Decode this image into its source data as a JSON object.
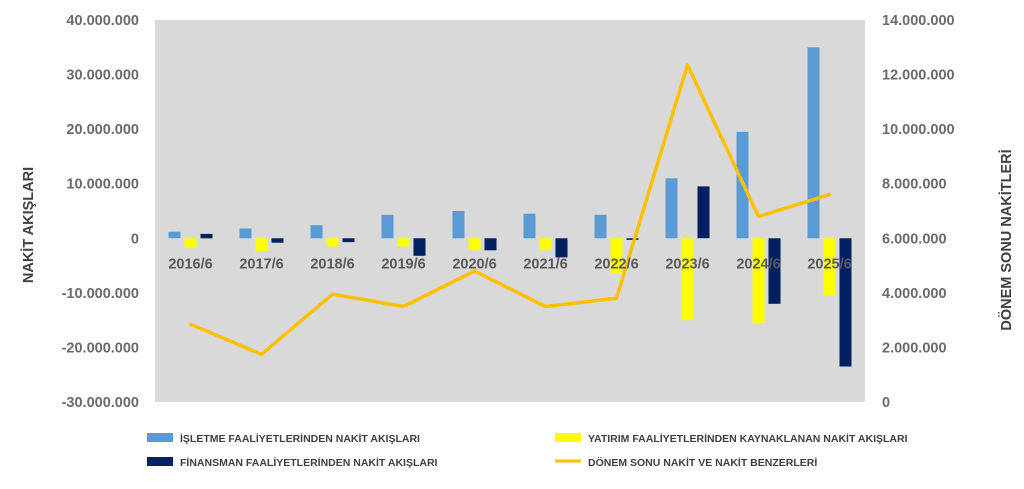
{
  "colors": {
    "plot_bg": "#d9d9d9",
    "operating": "#5b9bd5",
    "investing": "#ffff00",
    "financing": "#002060",
    "period_end": "#ffc000",
    "axis_text": "#6b6b6b"
  },
  "chart_data": {
    "type": "bar",
    "title": "",
    "xlabel": "",
    "ylabel": "NAKİT AKIŞLARI",
    "y2label": "DÖNEM SONU NAKİTLERİ",
    "ylim": [
      -30000000,
      40000000
    ],
    "y2lim": [
      0,
      14000000
    ],
    "grid": false,
    "legend_position": "bottom",
    "categories": [
      "2016/6",
      "2017/6",
      "2018/6",
      "2019/6",
      "2020/6",
      "2021/6",
      "2022/6",
      "2023/6",
      "2024/6",
      "2025/6"
    ],
    "y_ticks": [
      "40.000.000",
      "30.000.000",
      "20.000.000",
      "10.000.000",
      "0",
      "-10.000.000",
      "-20.000.000",
      "-30.000.000"
    ],
    "y2_ticks": [
      "14.000.000",
      "12.000.000",
      "10.000.000",
      "8.000.000",
      "6.000.000",
      "4.000.000",
      "2.000.000",
      "0"
    ],
    "series": [
      {
        "name": "İŞLETME FAALİYETLERİNDEN NAKİT AKIŞLARI",
        "kind": "bar",
        "axis": "left",
        "values": [
          1200000,
          1800000,
          2400000,
          4300000,
          5000000,
          4500000,
          4300000,
          11000000,
          19500000,
          35000000
        ]
      },
      {
        "name": "YATIRIM FAALİYETLERİNDEN KAYNAKLANAN NAKİT AKIŞLARI",
        "kind": "bar",
        "axis": "left",
        "values": [
          -1800000,
          -2300000,
          -1500000,
          -1500000,
          -2200000,
          -2200000,
          -6500000,
          -15000000,
          -15500000,
          -10500000
        ]
      },
      {
        "name": "FİNANSMAN FAALİYETLERİNDEN NAKİT AKIŞLARI",
        "kind": "bar",
        "axis": "left",
        "values": [
          800000,
          -800000,
          -700000,
          -3200000,
          -2200000,
          -3500000,
          -300000,
          9500000,
          -12000000,
          -23500000
        ]
      },
      {
        "name": "DÖNEM SONU NAKİT VE NAKİT BENZERLERİ",
        "kind": "line",
        "axis": "right",
        "values": [
          2850000,
          1750000,
          3950000,
          3500000,
          4800000,
          3500000,
          3800000,
          12350000,
          6800000,
          7600000
        ]
      }
    ]
  }
}
